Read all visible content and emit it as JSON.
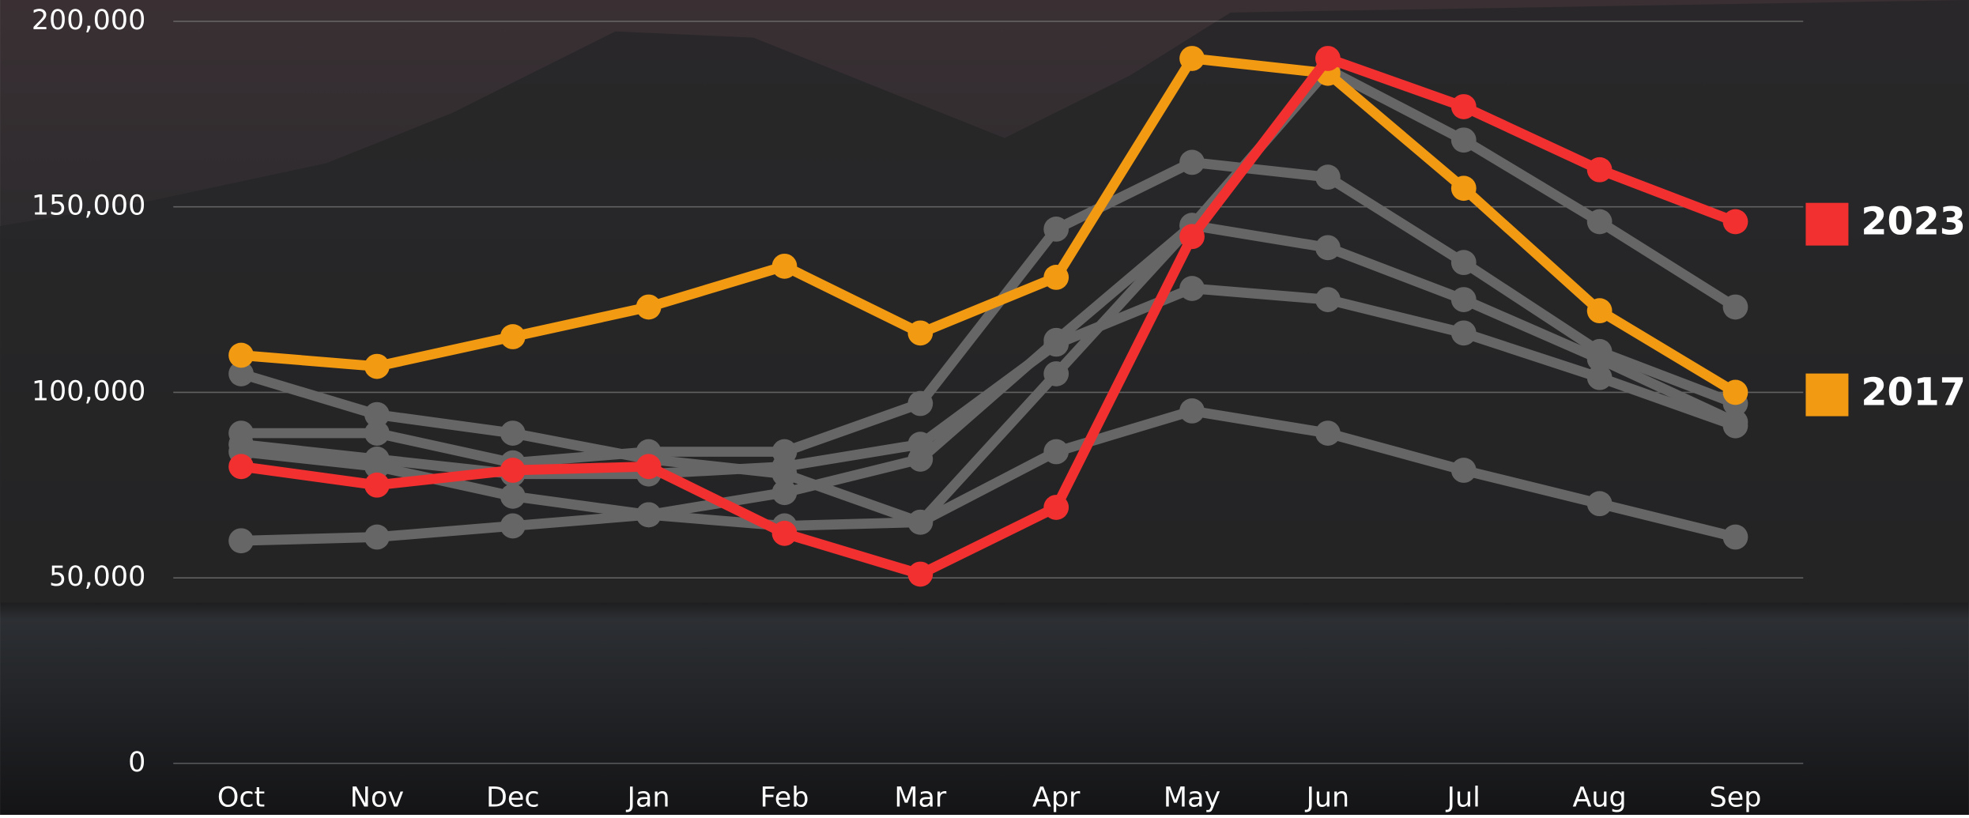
{
  "chart_data": {
    "type": "line",
    "categories": [
      "Oct",
      "Nov",
      "Dec",
      "Jan",
      "Feb",
      "Mar",
      "Apr",
      "May",
      "Jun",
      "Jul",
      "Aug",
      "Sep"
    ],
    "series": [
      {
        "color": "#666666",
        "values": [
          60000,
          61000,
          64000,
          67000,
          64000,
          65000,
          84000,
          95000,
          89000,
          79000,
          70000,
          61000
        ]
      },
      {
        "color": "#666666",
        "values": [
          105000,
          94000,
          89000,
          82000,
          78000,
          65000,
          105000,
          145000,
          187000,
          168000,
          146000,
          123000
        ]
      },
      {
        "color": "#666666",
        "values": [
          89000,
          89000,
          81000,
          84000,
          84000,
          97000,
          144000,
          162000,
          158000,
          135000,
          111000,
          97000
        ]
      },
      {
        "color": "#666666",
        "values": [
          86000,
          82000,
          78000,
          78000,
          80000,
          86000,
          113000,
          128000,
          125000,
          116000,
          104000,
          91000
        ]
      },
      {
        "color": "#666666",
        "values": [
          84000,
          80000,
          72000,
          67000,
          73000,
          82000,
          114000,
          145000,
          139000,
          125000,
          109000,
          92000
        ]
      },
      {
        "name": "2017",
        "color": "#f29a12",
        "values": [
          110000,
          107000,
          115000,
          123000,
          134000,
          116000,
          131000,
          190000,
          186000,
          155000,
          122000,
          100000
        ]
      },
      {
        "name": "2023",
        "color": "#f23030",
        "values": [
          80000,
          75000,
          79000,
          80000,
          62000,
          51000,
          69000,
          142000,
          190000,
          177000,
          160000,
          146000
        ]
      }
    ],
    "ylim": [
      0,
      200000
    ],
    "yticks": [
      0,
      {
        "value": 50000,
        "label": "50,000"
      },
      {
        "value": 100000,
        "label": "100,000"
      },
      {
        "value": 150000,
        "label": "150,000"
      },
      {
        "value": 200000,
        "label": "200,000"
      }
    ],
    "grid": true
  }
}
